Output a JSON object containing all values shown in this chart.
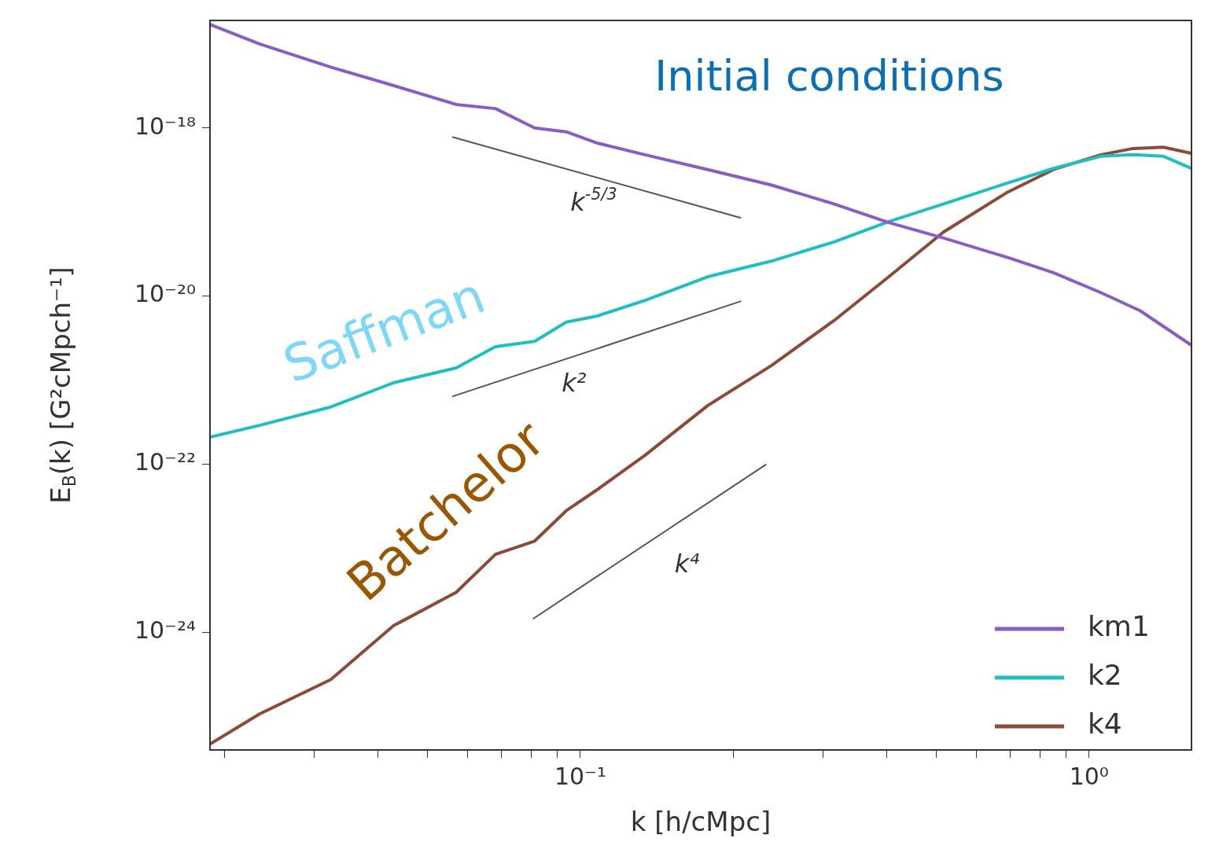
{
  "chart_data": {
    "type": "line",
    "xlabel": "k [h/cMpc]",
    "ylabel": "E$_{B}$(k) [G²cMpch⁻¹]",
    "log": "xy",
    "grid": false,
    "legend": "bottom right",
    "marker": "none",
    "xlim": [
      0.0187,
      1.59
    ],
    "ylim": [
      4.4e-26,
      1.9e-17
    ],
    "xticks": [
      {
        "value": 0.02,
        "label": null
      },
      {
        "value": 0.03,
        "label": null
      },
      {
        "value": 0.04,
        "label": null
      },
      {
        "value": 0.05,
        "label": null
      },
      {
        "value": 0.06,
        "label": null
      },
      {
        "value": 0.07,
        "label": null
      },
      {
        "value": 0.08,
        "label": null
      },
      {
        "value": 0.09,
        "label": null
      },
      {
        "value": 0.1,
        "label": "10⁻¹"
      },
      {
        "value": 0.2,
        "label": null
      },
      {
        "value": 0.3,
        "label": null
      },
      {
        "value": 0.4,
        "label": null
      },
      {
        "value": 0.5,
        "label": null
      },
      {
        "value": 0.6,
        "label": null
      },
      {
        "value": 0.7,
        "label": null
      },
      {
        "value": 0.8,
        "label": null
      },
      {
        "value": 0.9,
        "label": null
      },
      {
        "value": 1,
        "label": "10⁰"
      }
    ],
    "yticks": [
      {
        "value": 1e-24,
        "label": "10⁻²⁴"
      },
      {
        "value": 1e-22,
        "label": "10⁻²²"
      },
      {
        "value": 1e-20,
        "label": "10⁻²⁰"
      },
      {
        "value": 1e-18,
        "label": "10⁻¹⁸"
      }
    ],
    "series": [
      {
        "name": "km1",
        "color": "#8a5cc4",
        "x": [
          0.0187,
          0.0234,
          0.0323,
          0.0429,
          0.057,
          0.0681,
          0.0813,
          0.0938,
          0.108,
          0.134,
          0.178,
          0.237,
          0.315,
          0.404,
          0.518,
          0.689,
          0.851,
          1.055,
          1.26,
          1.59
        ],
        "values": [
          1.7e-17,
          1e-17,
          5.3e-18,
          3.2e-18,
          1.9e-18,
          1.7e-18,
          1e-18,
          9e-19,
          6.6e-19,
          4.8e-19,
          3.2e-19,
          2.1e-19,
          1.25e-19,
          7.5e-20,
          4.9e-20,
          2.9e-20,
          1.9e-20,
          1.1e-20,
          6.7e-21,
          2.6e-21
        ]
      },
      {
        "name": "k2",
        "color": "#1fbfbf",
        "x": [
          0.0187,
          0.0234,
          0.0323,
          0.0429,
          0.057,
          0.0681,
          0.0813,
          0.0938,
          0.108,
          0.134,
          0.178,
          0.237,
          0.315,
          0.404,
          0.518,
          0.689,
          0.851,
          1.055,
          1.22,
          1.4,
          1.59
        ],
        "values": [
          2.1e-22,
          2.9e-22,
          4.8e-22,
          9.3e-22,
          1.4e-21,
          2.5e-21,
          2.9e-21,
          4.9e-21,
          5.8e-21,
          8.9e-21,
          1.7e-20,
          2.6e-20,
          4.4e-20,
          7.7e-20,
          1.25e-19,
          2.2e-19,
          3.3e-19,
          4.6e-19,
          4.8e-19,
          4.6e-19,
          3.3e-19
        ]
      },
      {
        "name": "k4",
        "color": "#8b4a3a",
        "x": [
          0.0187,
          0.0234,
          0.0323,
          0.0429,
          0.057,
          0.0681,
          0.0813,
          0.0938,
          0.108,
          0.134,
          0.178,
          0.237,
          0.315,
          0.404,
          0.518,
          0.689,
          0.851,
          1.055,
          1.22,
          1.4,
          1.59
        ],
        "values": [
          4.7e-26,
          1.07e-25,
          2.75e-25,
          1.2e-24,
          3e-24,
          8.5e-24,
          1.22e-23,
          2.8e-23,
          5e-23,
          1.28e-22,
          5e-22,
          1.48e-21,
          5.1e-21,
          1.7e-20,
          5.8e-20,
          1.7e-19,
          3.2e-19,
          4.8e-19,
          5.7e-19,
          5.9e-19,
          5e-19
        ]
      },
      {
        "type": "line",
        "color": "#555555",
        "x": [
          0.056,
          0.207
        ],
        "values": [
          7.8e-19,
          8.5e-20
        ]
      },
      {
        "type": "line",
        "color": "#555555",
        "x": [
          0.056,
          0.207
        ],
        "values": [
          6.4e-22,
          8.7e-21
        ]
      },
      {
        "type": "line",
        "color": "#555555",
        "x": [
          0.0807,
          0.232
        ],
        "values": [
          1.45e-24,
          1e-22
        ]
      }
    ],
    "annotations": [
      "Initial conditions",
      "Saffman",
      "Batchelor",
      "k$^{-5/3}$",
      "k²",
      "k⁴"
    ]
  }
}
